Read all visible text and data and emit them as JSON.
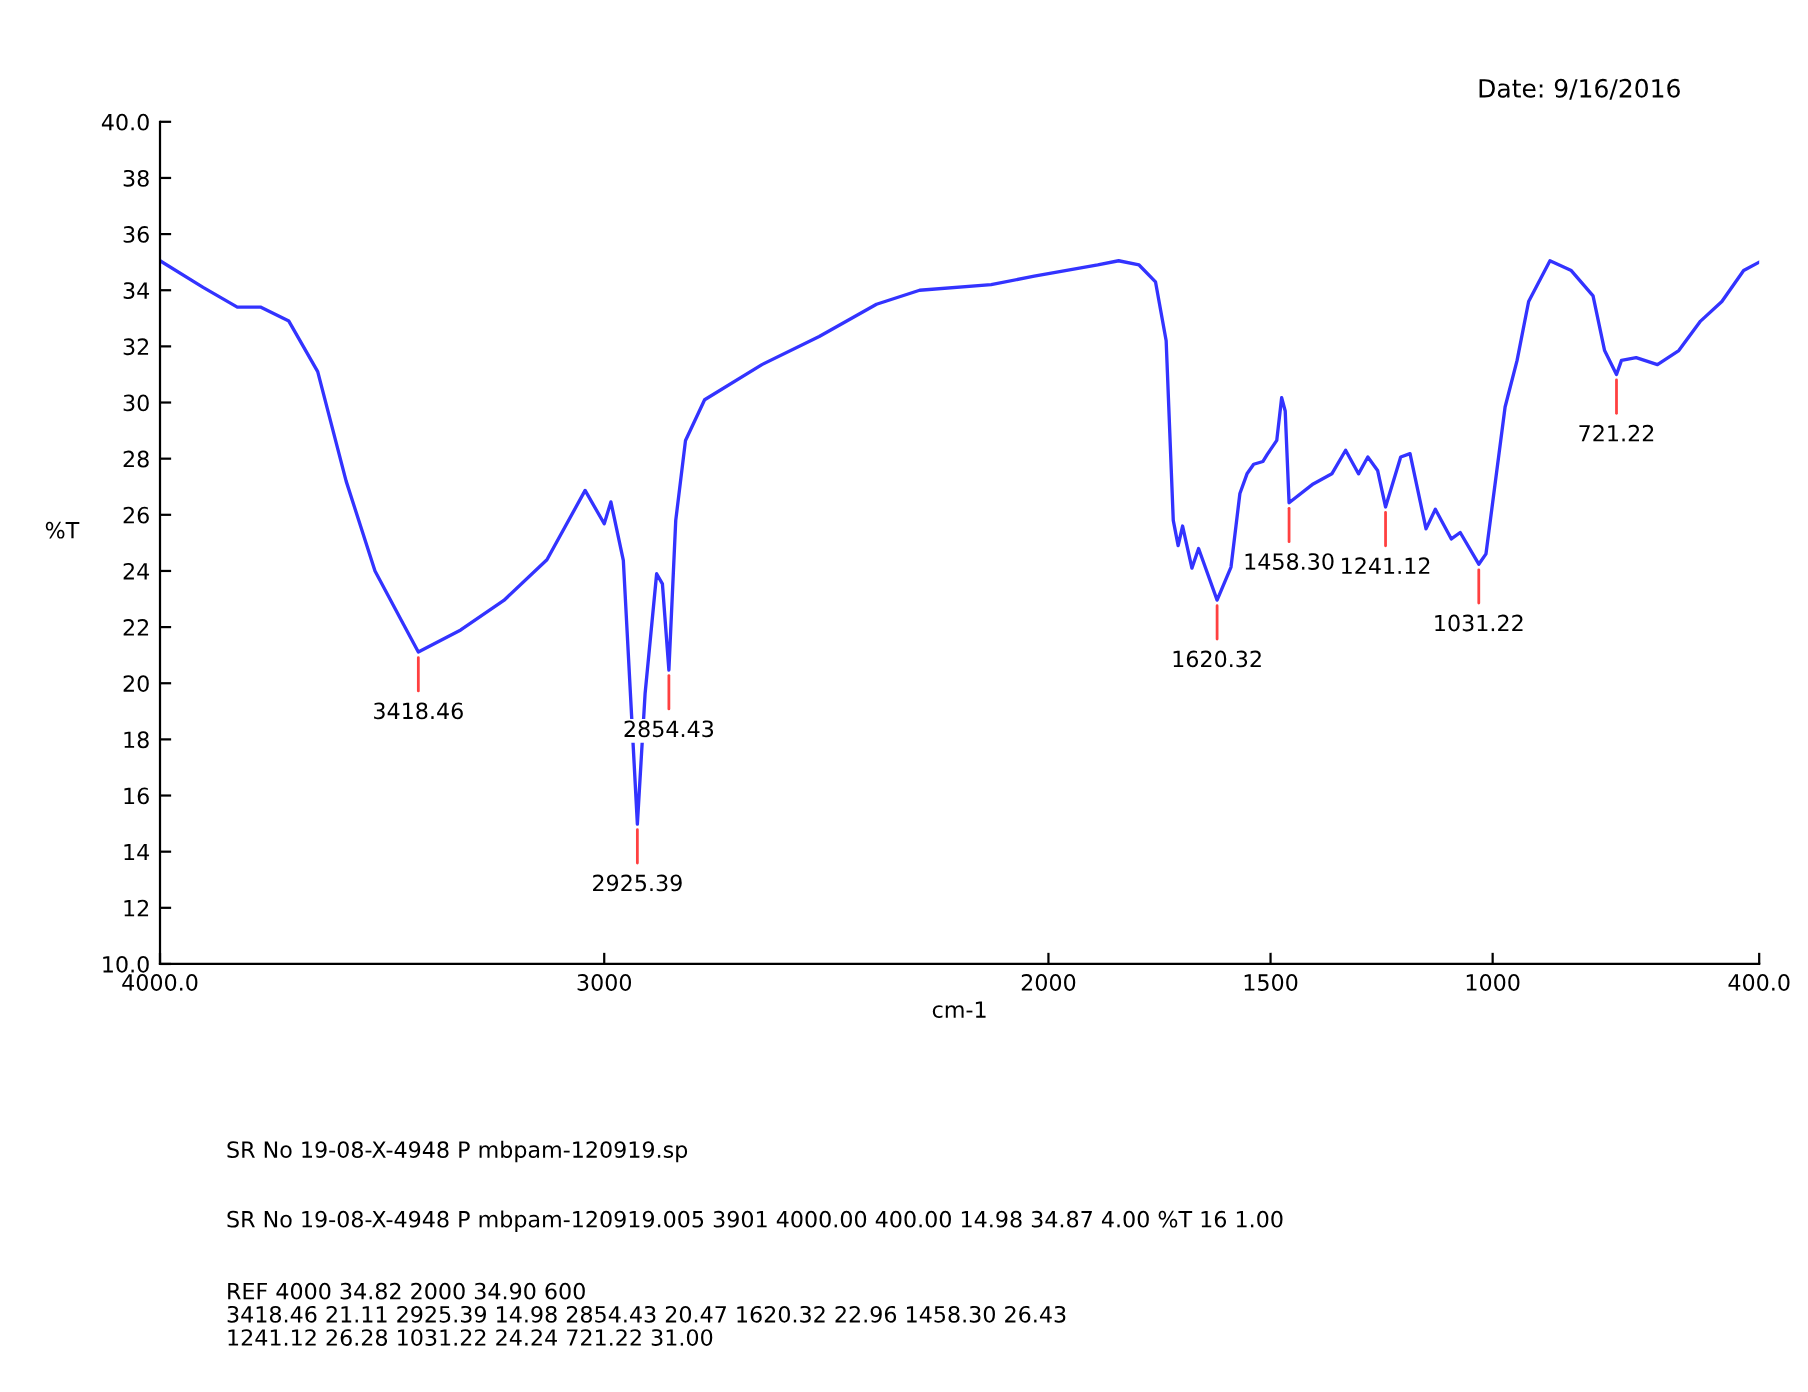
{
  "chart_data": {
    "type": "line",
    "xlabel": "cm-1",
    "ylabel": "%T",
    "x": [
      4000,
      3903,
      3826,
      3774,
      3710,
      3645,
      3581,
      3516,
      3452,
      3418.46,
      3323,
      3226,
      3129,
      3043,
      3000,
      2985,
      2957,
      2925.39,
      2908,
      2882,
      2869,
      2854.43,
      2839,
      2817,
      2774,
      2645,
      2516,
      2387,
      2290,
      2129,
      2032,
      1889,
      1842,
      1796,
      1759,
      1735,
      1719,
      1708,
      1698,
      1677,
      1662,
      1620.32,
      1589,
      1569,
      1553,
      1538,
      1517,
      1507,
      1486,
      1475,
      1467,
      1458.3,
      1404,
      1362,
      1331,
      1302,
      1281,
      1259,
      1241.12,
      1207,
      1186,
      1150,
      1129,
      1093,
      1073,
      1031.22,
      1015,
      972,
      945,
      919,
      871,
      823,
      774,
      748,
      721.22,
      710,
      677,
      629,
      581,
      532,
      484,
      435,
      400
    ],
    "series": [
      {
        "color": "#3333ff",
        "values": [
          35.05,
          34.1,
          33.4,
          33.4,
          32.9,
          31.1,
          27.2,
          24.0,
          22.1,
          21.11,
          21.9,
          22.95,
          24.4,
          26.87,
          25.68,
          26.46,
          24.38,
          14.98,
          19.63,
          23.9,
          23.54,
          20.47,
          25.8,
          28.65,
          30.1,
          31.35,
          32.35,
          33.5,
          34.0,
          34.2,
          34.5,
          34.9,
          35.05,
          34.9,
          34.3,
          32.2,
          25.8,
          24.9,
          25.6,
          24.1,
          24.8,
          22.96,
          24.14,
          26.76,
          27.46,
          27.8,
          27.9,
          28.16,
          28.65,
          30.17,
          29.7,
          26.43,
          27.1,
          27.46,
          28.3,
          27.46,
          28.06,
          27.58,
          26.28,
          28.06,
          28.18,
          25.5,
          26.2,
          25.14,
          25.37,
          24.24,
          24.61,
          29.84,
          31.5,
          33.6,
          35.05,
          34.7,
          33.8,
          31.85,
          31.0,
          31.5,
          31.6,
          31.35,
          31.85,
          32.9,
          33.6,
          34.7,
          35.0
        ]
      }
    ],
    "xlim": [
      4000,
      400
    ],
    "xticks": [
      {
        "value": 4000,
        "label": "4000.0"
      },
      3000,
      2000,
      1500,
      1000,
      {
        "value": 400,
        "label": "400.0"
      }
    ],
    "ylim": [
      10,
      40
    ],
    "yticks": [
      {
        "value": 10,
        "label": "10.0"
      },
      12,
      14,
      16,
      18,
      20,
      22,
      24,
      26,
      28,
      30,
      32,
      34,
      36,
      38,
      {
        "value": 40,
        "label": "40.0"
      }
    ],
    "grid": false,
    "marker": "none",
    "line_style": "solid",
    "annotations": [
      "Date: 9/16/2016",
      {
        "text": "3418.46",
        "x": 3418.46,
        "y": 21.11
      },
      {
        "text": "2925.39",
        "x": 2925.39,
        "y": 14.98
      },
      {
        "text": "2854.43",
        "x": 2854.43,
        "y": 20.47
      },
      {
        "text": "1620.32",
        "x": 1620.32,
        "y": 22.96
      },
      {
        "text": "1458.30",
        "x": 1458.3,
        "y": 26.43
      },
      {
        "text": "1241.12",
        "x": 1241.12,
        "y": 26.28
      },
      {
        "text": "1031.22",
        "x": 1031.22,
        "y": 24.24
      },
      {
        "text": "721.22",
        "x": 721.22,
        "y": 31.0
      },
      "SR No 19-08-X-4948 P mbpam-120919.sp",
      "SR No 19-08-X-4948 P mbpam-120919.005 3901 4000.00 400.00 14.98 34.87 4.00 %T 16 1.00",
      "REF 4000 34.82 2000 34.90 600\n3418.46 21.11 2925.39 14.98 2854.43 20.47 1620.32 22.96 1458.30 26.43\n1241.12 26.28 1031.22 24.24 721.22 31.00"
    ]
  }
}
